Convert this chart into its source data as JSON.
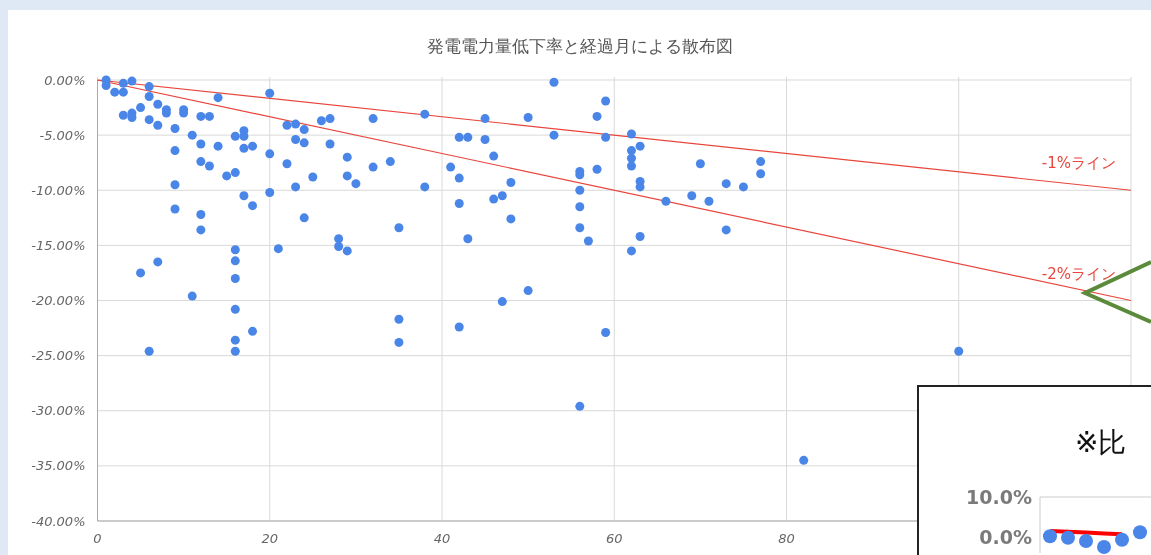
{
  "chart_data": [
    {
      "type": "scatter",
      "title": "発電電力量低下率と経過月による散布図",
      "grid": true,
      "xlim": [
        0,
        120
      ],
      "xticks": [
        0,
        20,
        40,
        60,
        80,
        {
          "value": 100,
          "label": null
        },
        {
          "value": 120,
          "label": null
        }
      ],
      "ylim": [
        -40,
        0
      ],
      "yticks": [
        {
          "value": 0,
          "label": "0.00%"
        },
        {
          "value": -5,
          "label": "-5.00%"
        },
        {
          "value": -10,
          "label": "-10.00%"
        },
        {
          "value": -15,
          "label": "-15.00%"
        },
        {
          "value": -20,
          "label": "-20.00%"
        },
        {
          "value": -25,
          "label": "-25.00%"
        },
        {
          "value": -30,
          "label": "-30.00%"
        },
        {
          "value": -35,
          "label": "-35.00%"
        },
        {
          "value": -40,
          "label": "-40.00%"
        }
      ],
      "series": [
        {
          "marker": "circle",
          "color": "#4a86e8",
          "x": [
            1,
            1,
            2,
            3,
            3,
            4,
            3,
            4,
            4,
            5,
            6,
            6,
            7,
            6,
            7,
            8,
            8,
            9,
            10,
            10,
            9,
            9,
            9,
            11,
            12,
            13,
            12,
            12,
            13,
            12,
            12,
            14,
            14,
            15,
            16,
            16,
            17,
            16,
            17,
            17,
            18,
            17,
            18,
            16,
            16,
            16,
            5,
            7,
            11,
            16,
            18,
            16,
            6,
            20,
            20,
            20,
            21,
            22,
            22,
            23,
            24,
            23,
            24,
            23,
            24,
            25,
            26,
            27,
            27,
            29,
            29,
            30,
            32,
            32,
            34,
            38,
            38,
            28,
            28,
            29,
            35,
            42,
            43,
            41,
            42,
            42,
            43,
            45,
            45,
            46,
            48,
            46,
            47,
            48,
            50,
            53,
            53,
            50,
            47,
            56,
            56,
            56,
            56,
            56,
            57,
            58,
            58,
            59,
            59,
            62,
            62,
            62,
            62,
            63,
            63,
            63,
            63,
            62,
            35,
            35,
            42,
            59,
            56,
            82,
            100,
            70,
            77,
            77,
            73,
            75,
            69,
            71,
            66,
            73
          ],
          "values": [
            0,
            -0.5,
            -1.1,
            -1.1,
            -0.3,
            -0.1,
            -3.2,
            -3.4,
            -3,
            -2.5,
            -0.6,
            -1.5,
            -2.2,
            -3.6,
            -4.1,
            -2.7,
            -3,
            -4.4,
            -2.7,
            -3,
            -6.4,
            -9.5,
            -11.7,
            -5,
            -3.3,
            -3.3,
            -5.8,
            -7.4,
            -7.8,
            -12.2,
            -13.6,
            -1.6,
            -6,
            -8.7,
            -8.4,
            -5.1,
            -4.6,
            -16.4,
            -5.1,
            -6.2,
            -6,
            -10.5,
            -11.4,
            -15.4,
            -18,
            -20.8,
            -17.5,
            -16.5,
            -19.6,
            -23.6,
            -22.8,
            -24.6,
            -24.6,
            -1.2,
            -6.7,
            -10.2,
            -15.3,
            -7.6,
            -4.1,
            -4,
            -4.5,
            -5.4,
            -5.7,
            -9.7,
            -12.5,
            -8.8,
            -3.7,
            -3.5,
            -5.8,
            -7,
            -8.7,
            -9.4,
            -3.5,
            -7.9,
            -7.4,
            -3.1,
            -9.7,
            -14.4,
            -15.1,
            -15.5,
            -13.4,
            -5.2,
            -5.2,
            -7.9,
            -8.9,
            -11.2,
            -14.4,
            -3.5,
            -5.4,
            -6.9,
            -9.3,
            -10.8,
            -10.5,
            -12.6,
            -3.4,
            -0.2,
            -5,
            -19.1,
            -20.1,
            -8.3,
            -8.6,
            -10,
            -11.5,
            -13.4,
            -14.6,
            -3.3,
            -8.1,
            -1.9,
            -5.2,
            -4.9,
            -6.4,
            -7.1,
            -7.8,
            -6,
            -9.2,
            -9.7,
            -14.2,
            -15.5,
            -21.7,
            -23.8,
            -22.4,
            -22.9,
            -29.6,
            -34.5,
            -24.6,
            -7.6,
            -7.4,
            -8.5,
            -9.4,
            -9.7,
            -10.5,
            -11,
            -11,
            -13.6
          ]
        },
        {
          "type": "line",
          "marker": "none",
          "name": "-1%ライン",
          "color": "#e8453c",
          "x": [
            0,
            120
          ],
          "values": [
            0,
            -10
          ]
        },
        {
          "type": "line",
          "marker": "none",
          "name": "-2%ライン",
          "color": "#e8453c",
          "x": [
            0,
            120
          ],
          "values": [
            0,
            -20
          ]
        }
      ]
    },
    {
      "type": "scatter",
      "title": "※比",
      "tick_labels": "y",
      "categories": [
        null,
        null,
        null,
        null,
        null,
        null
      ],
      "ylim": [
        -4,
        10
      ],
      "yticks": [
        {
          "value": 10,
          "label": "10.0%"
        },
        {
          "value": 0,
          "label": "0.0%"
        }
      ],
      "series": [
        {
          "marker": "circle",
          "color": "#4a86e8",
          "values": [
            0.2,
            -0.2,
            -1,
            -2.5,
            -0.7,
            1.2
          ]
        },
        {
          "type": "line",
          "marker": "none",
          "color": "#ff0000",
          "values": [
            1.5,
            1.3,
            1.1,
            0.9,
            0.7,
            null
          ]
        }
      ]
    }
  ]
}
